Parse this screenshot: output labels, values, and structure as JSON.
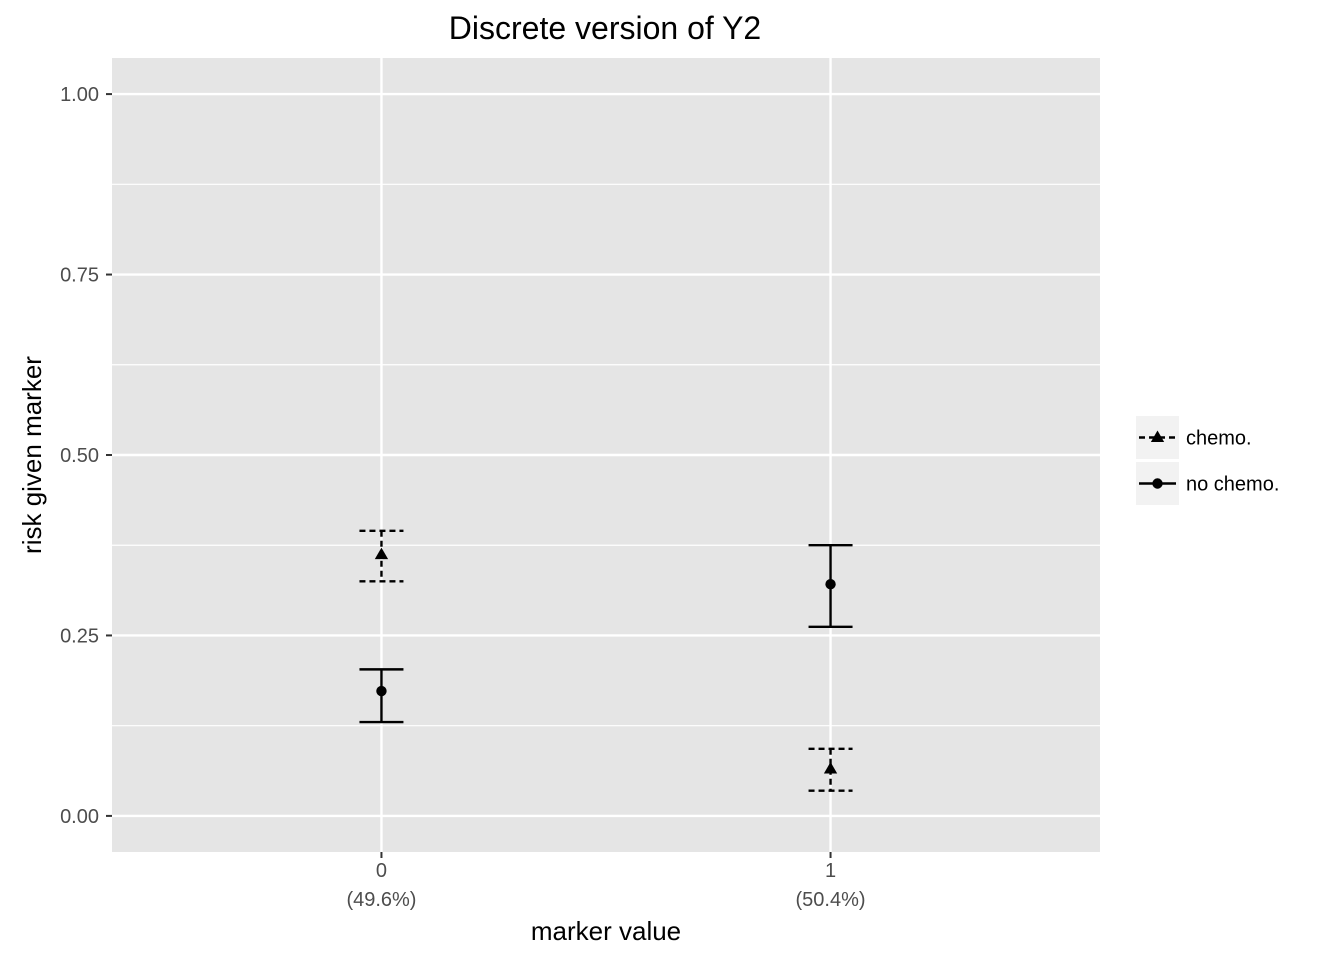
{
  "chart_data": {
    "type": "scatter",
    "title": "Discrete version of Y2",
    "xlabel": "marker value",
    "ylabel": "risk given marker",
    "categories": [
      "0",
      "1"
    ],
    "category_sublabels": [
      "(49.6%)",
      "(50.4%)"
    ],
    "ylim": [
      -0.05,
      1.05
    ],
    "yticks": [
      "0.00",
      "0.25",
      "0.50",
      "0.75",
      "1.00"
    ],
    "grid": true,
    "legend_position": "right",
    "series": [
      {
        "name": "chemo.",
        "marker": "triangle",
        "linetype": "dashed",
        "values": [
          0.362,
          0.065
        ],
        "lower": [
          0.325,
          0.035
        ],
        "upper": [
          0.395,
          0.093
        ]
      },
      {
        "name": "no chemo.",
        "marker": "circle",
        "linetype": "solid",
        "values": [
          0.173,
          0.321
        ],
        "lower": [
          0.13,
          0.262
        ],
        "upper": [
          0.203,
          0.375
        ]
      }
    ],
    "colors": {
      "panel": "#e5e5e5",
      "grid": "#ffffff",
      "mark": "#000000",
      "tick_text": "#4d4d4d",
      "legend_key": "#f2f2f2"
    }
  }
}
